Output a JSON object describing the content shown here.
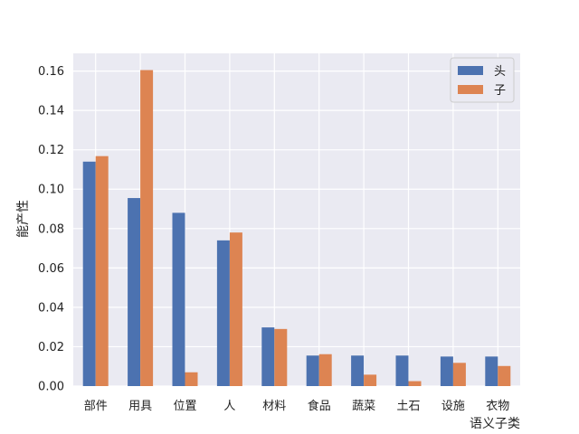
{
  "chart_data": {
    "type": "bar",
    "xlabel": "语义子类",
    "ylabel": "能产性",
    "categories": [
      "部件",
      "用具",
      "位置",
      "人",
      "材料",
      "食品",
      "蔬菜",
      "土石",
      "设施",
      "衣物"
    ],
    "series": [
      {
        "name": "头",
        "color": "#4c72b0",
        "values": [
          0.114,
          0.0955,
          0.088,
          0.074,
          0.0298,
          0.0155,
          0.0155,
          0.0155,
          0.015,
          0.015
        ]
      },
      {
        "name": "子",
        "color": "#dd8452",
        "values": [
          0.1168,
          0.1605,
          0.007,
          0.078,
          0.029,
          0.0162,
          0.0058,
          0.0025,
          0.0118,
          0.0102
        ]
      }
    ],
    "ylim": [
      0,
      0.169
    ],
    "yticks": [
      "0.00",
      "0.02",
      "0.04",
      "0.06",
      "0.08",
      "0.10",
      "0.12",
      "0.14",
      "0.16"
    ],
    "grid": true,
    "legend_position": "top-right",
    "plot_background": "#eaeaf2",
    "grid_color": "#ffffff"
  }
}
